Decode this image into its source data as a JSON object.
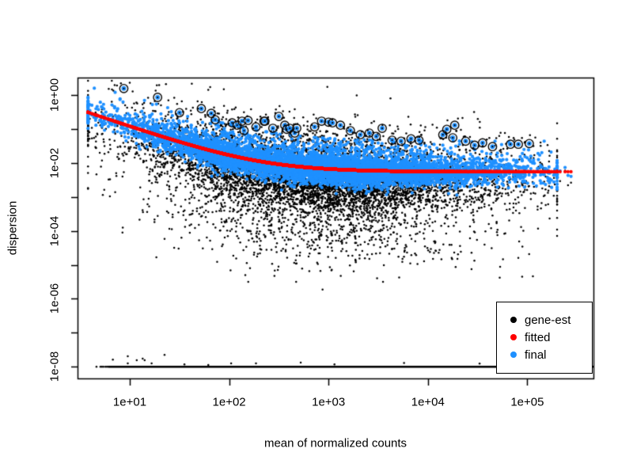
{
  "colors": {
    "background": "#FFFFFF",
    "foreground": "#000000",
    "gene_est": "#000000",
    "fitted": "#FF0000",
    "final": "#1E90FF"
  },
  "chart_data": {
    "type": "scatter",
    "scale": "log-log",
    "title": "",
    "xlabel": "mean of normalized counts",
    "ylabel": "dispersion",
    "x_ticks": [
      "1e+01",
      "1e+02",
      "1e+03",
      "1e+04",
      "1e+05"
    ],
    "x_tick_values": [
      10,
      100,
      1000,
      10000,
      100000
    ],
    "y_ticks": [
      "1e+00",
      "1e-02",
      "1e-04",
      "1e-06",
      "1e-08"
    ],
    "y_tick_values": [
      1,
      0.01,
      0.0001,
      1e-06,
      1e-08
    ],
    "y_minor_tick_values": [
      0.1,
      0.001,
      1e-05,
      1e-07
    ],
    "xlim_log10": [
      0.475,
      5.67
    ],
    "ylim_log10": [
      -8.4,
      0.51
    ],
    "grid": false,
    "legend": {
      "position": "bottomright",
      "items": [
        {
          "label": "gene-est",
          "color": "#000000"
        },
        {
          "label": "fitted",
          "color": "#FF0000"
        },
        {
          "label": "final",
          "color": "#1E90FF"
        }
      ]
    },
    "fitted_curve": {
      "model": "dispersion = a / meanCounts + b",
      "a": 1.15,
      "b": 0.0055,
      "x_log10_range": [
        0.66,
        5.44
      ],
      "sample_points": [
        {
          "x": 5,
          "y": 0.2355
        },
        {
          "x": 10,
          "y": 0.1205
        },
        {
          "x": 30,
          "y": 0.0438
        },
        {
          "x": 100,
          "y": 0.017
        },
        {
          "x": 300,
          "y": 0.0093
        },
        {
          "x": 1000,
          "y": 0.0067
        },
        {
          "x": 3000,
          "y": 0.0059
        },
        {
          "x": 10000,
          "y": 0.0056
        },
        {
          "x": 100000,
          "y": 0.0055
        },
        {
          "x": 280000,
          "y": 0.0055
        }
      ]
    },
    "point_clouds": {
      "seed": 42,
      "n_genes": 7000,
      "x_log10_dist": {
        "mean": 2.85,
        "sd": 0.95,
        "min": 0.58,
        "max": 5.3
      },
      "right_tail_x_log10": [
        4.72,
        4.78,
        4.82,
        4.87,
        4.93,
        4.98,
        5.02,
        5.08,
        5.13,
        5.17,
        5.22,
        5.28,
        5.33,
        5.38,
        5.41,
        5.44
      ],
      "gene_est_offset_mix": [
        {
          "w": 0.68,
          "mu": -0.45,
          "sd": 0.5
        },
        {
          "w": 0.22,
          "mu": 0.3,
          "sd": 0.55
        },
        {
          "w": 0.1,
          "mu": -1.9,
          "sd": 0.6
        }
      ],
      "gene_est_offset_clip": [
        -5.5,
        0.42
      ],
      "final_offset_mix": [
        {
          "w": 0.9,
          "mu": -0.03,
          "sd": 0.2
        },
        {
          "w": 0.1,
          "mu": 0.45,
          "sd": 0.28
        }
      ],
      "final_offset_clip": [
        -0.75,
        0.9
      ]
    },
    "outliers_circled_log10": [
      [
        0.94,
        0.19
      ],
      [
        1.28,
        -0.07
      ],
      [
        1.5,
        -0.52
      ],
      [
        1.72,
        -0.4
      ],
      [
        1.82,
        -0.54
      ],
      [
        1.86,
        -0.73
      ],
      [
        2.03,
        -0.82
      ],
      [
        2.08,
        -0.89
      ],
      [
        2.13,
        -0.77
      ],
      [
        2.19,
        -0.75
      ],
      [
        2.15,
        -1.05
      ],
      [
        2.27,
        -0.94
      ],
      [
        2.35,
        -0.77
      ],
      [
        2.36,
        -0.77
      ],
      [
        2.44,
        -0.98
      ],
      [
        2.5,
        -0.63
      ],
      [
        2.56,
        -0.89
      ],
      [
        2.58,
        -1.01
      ],
      [
        2.61,
        -0.98
      ],
      [
        2.66,
        -1.12
      ],
      [
        2.68,
        -0.98
      ],
      [
        2.86,
        -0.94
      ],
      [
        2.93,
        -0.77
      ],
      [
        3.0,
        -0.8
      ],
      [
        3.04,
        -0.82
      ],
      [
        3.12,
        -0.89
      ],
      [
        3.22,
        -1.05
      ],
      [
        3.32,
        -1.17
      ],
      [
        3.41,
        -1.12
      ],
      [
        3.48,
        -1.22
      ],
      [
        3.54,
        -0.98
      ],
      [
        3.64,
        -1.33
      ],
      [
        3.73,
        -1.36
      ],
      [
        3.83,
        -1.29
      ],
      [
        3.91,
        -1.33
      ],
      [
        4.15,
        -1.17
      ],
      [
        4.19,
        -1.01
      ],
      [
        4.25,
        -1.26
      ],
      [
        4.27,
        -0.89
      ],
      [
        4.38,
        -1.36
      ],
      [
        4.47,
        -1.48
      ],
      [
        4.55,
        -1.41
      ],
      [
        4.65,
        -1.52
      ],
      [
        4.83,
        -1.45
      ],
      [
        4.91,
        -1.45
      ],
      [
        5.02,
        -1.43
      ]
    ],
    "bottom_line": {
      "y_log10": -8,
      "solid_x_log10": [
        0.785,
        5.665
      ],
      "leading_dots_x_log10": [
        0.665,
        0.705,
        0.72,
        0.735,
        0.755,
        0.77
      ],
      "stray_points_log10": [
        [
          0.83,
          -7.79
        ],
        [
          0.98,
          -7.69
        ],
        [
          0.98,
          -7.9
        ],
        [
          1.07,
          -7.81
        ],
        [
          1.13,
          -7.76
        ],
        [
          1.15,
          -7.81
        ],
        [
          1.22,
          -7.9
        ],
        [
          1.35,
          -7.65
        ],
        [
          1.55,
          -7.93
        ],
        [
          1.79,
          -7.95
        ],
        [
          2.02,
          -7.9
        ],
        [
          2.27,
          -7.9
        ],
        [
          2.72,
          -7.88
        ],
        [
          3.06,
          -7.93
        ],
        [
          3.76,
          -7.89
        ],
        [
          4.52,
          -7.91
        ]
      ]
    },
    "isolated_low_points_log10": [
      [
        2.94,
        -5.73
      ],
      [
        2.21,
        -5.1
      ],
      [
        2.49,
        -5.15
      ],
      [
        1.83,
        -4.54
      ],
      [
        2.9,
        -4.66
      ],
      [
        3.24,
        -4.73
      ],
      [
        1.52,
        -4.2
      ]
    ]
  }
}
